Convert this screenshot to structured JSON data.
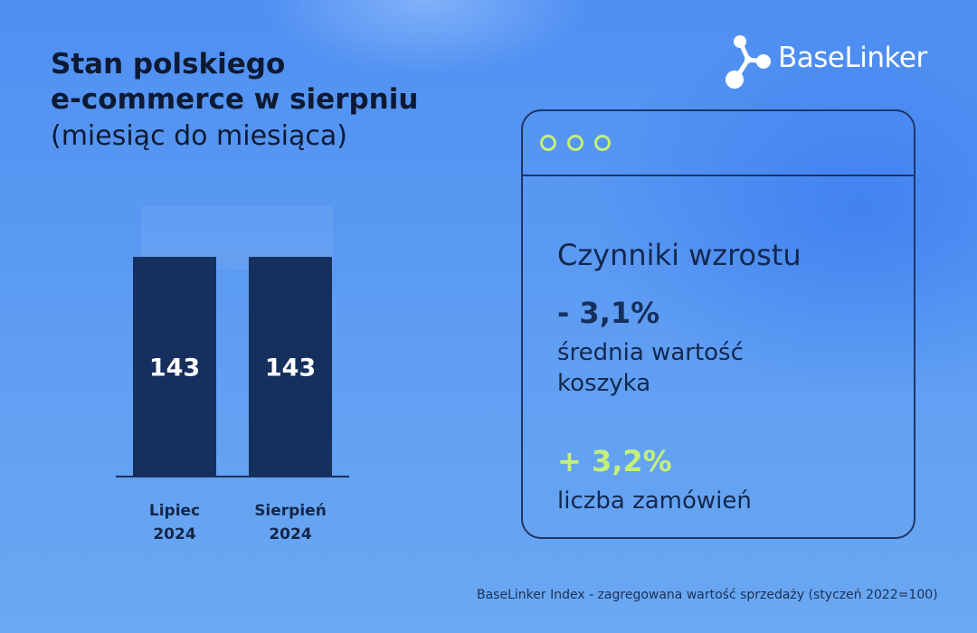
{
  "title": {
    "line1": "Stan polskiego",
    "line2": "e-commerce w sierpniu"
  },
  "subtitle": "(miesiąc do miesiąca)",
  "brand": {
    "name": "BaseLinker",
    "color": "#ffffff",
    "icon": "molecule-logo-icon"
  },
  "chart_data": {
    "type": "bar",
    "categories": [
      [
        "Lipiec",
        "2024"
      ],
      [
        "Sierpień",
        "2024"
      ]
    ],
    "values": [
      143,
      143
    ],
    "ylim": [
      0,
      176
    ],
    "grid": false,
    "bar_color": "#16305e",
    "label_color": "#ffffff"
  },
  "card": {
    "heading": "Czynniki wzrostu",
    "stats": [
      {
        "value": "- 3,1%",
        "label_lines": [
          "średnia wartość",
          "koszyka"
        ],
        "color": "#16305e"
      },
      {
        "value": "+ 3,2%",
        "label_lines": [
          "liczba zamówień"
        ],
        "color": "#c4f07a"
      }
    ],
    "dot_color": "#c4f07a"
  },
  "footnote": "BaseLinker Index - zagregowana wartość sprzedaży (styczeń 2022=100)"
}
